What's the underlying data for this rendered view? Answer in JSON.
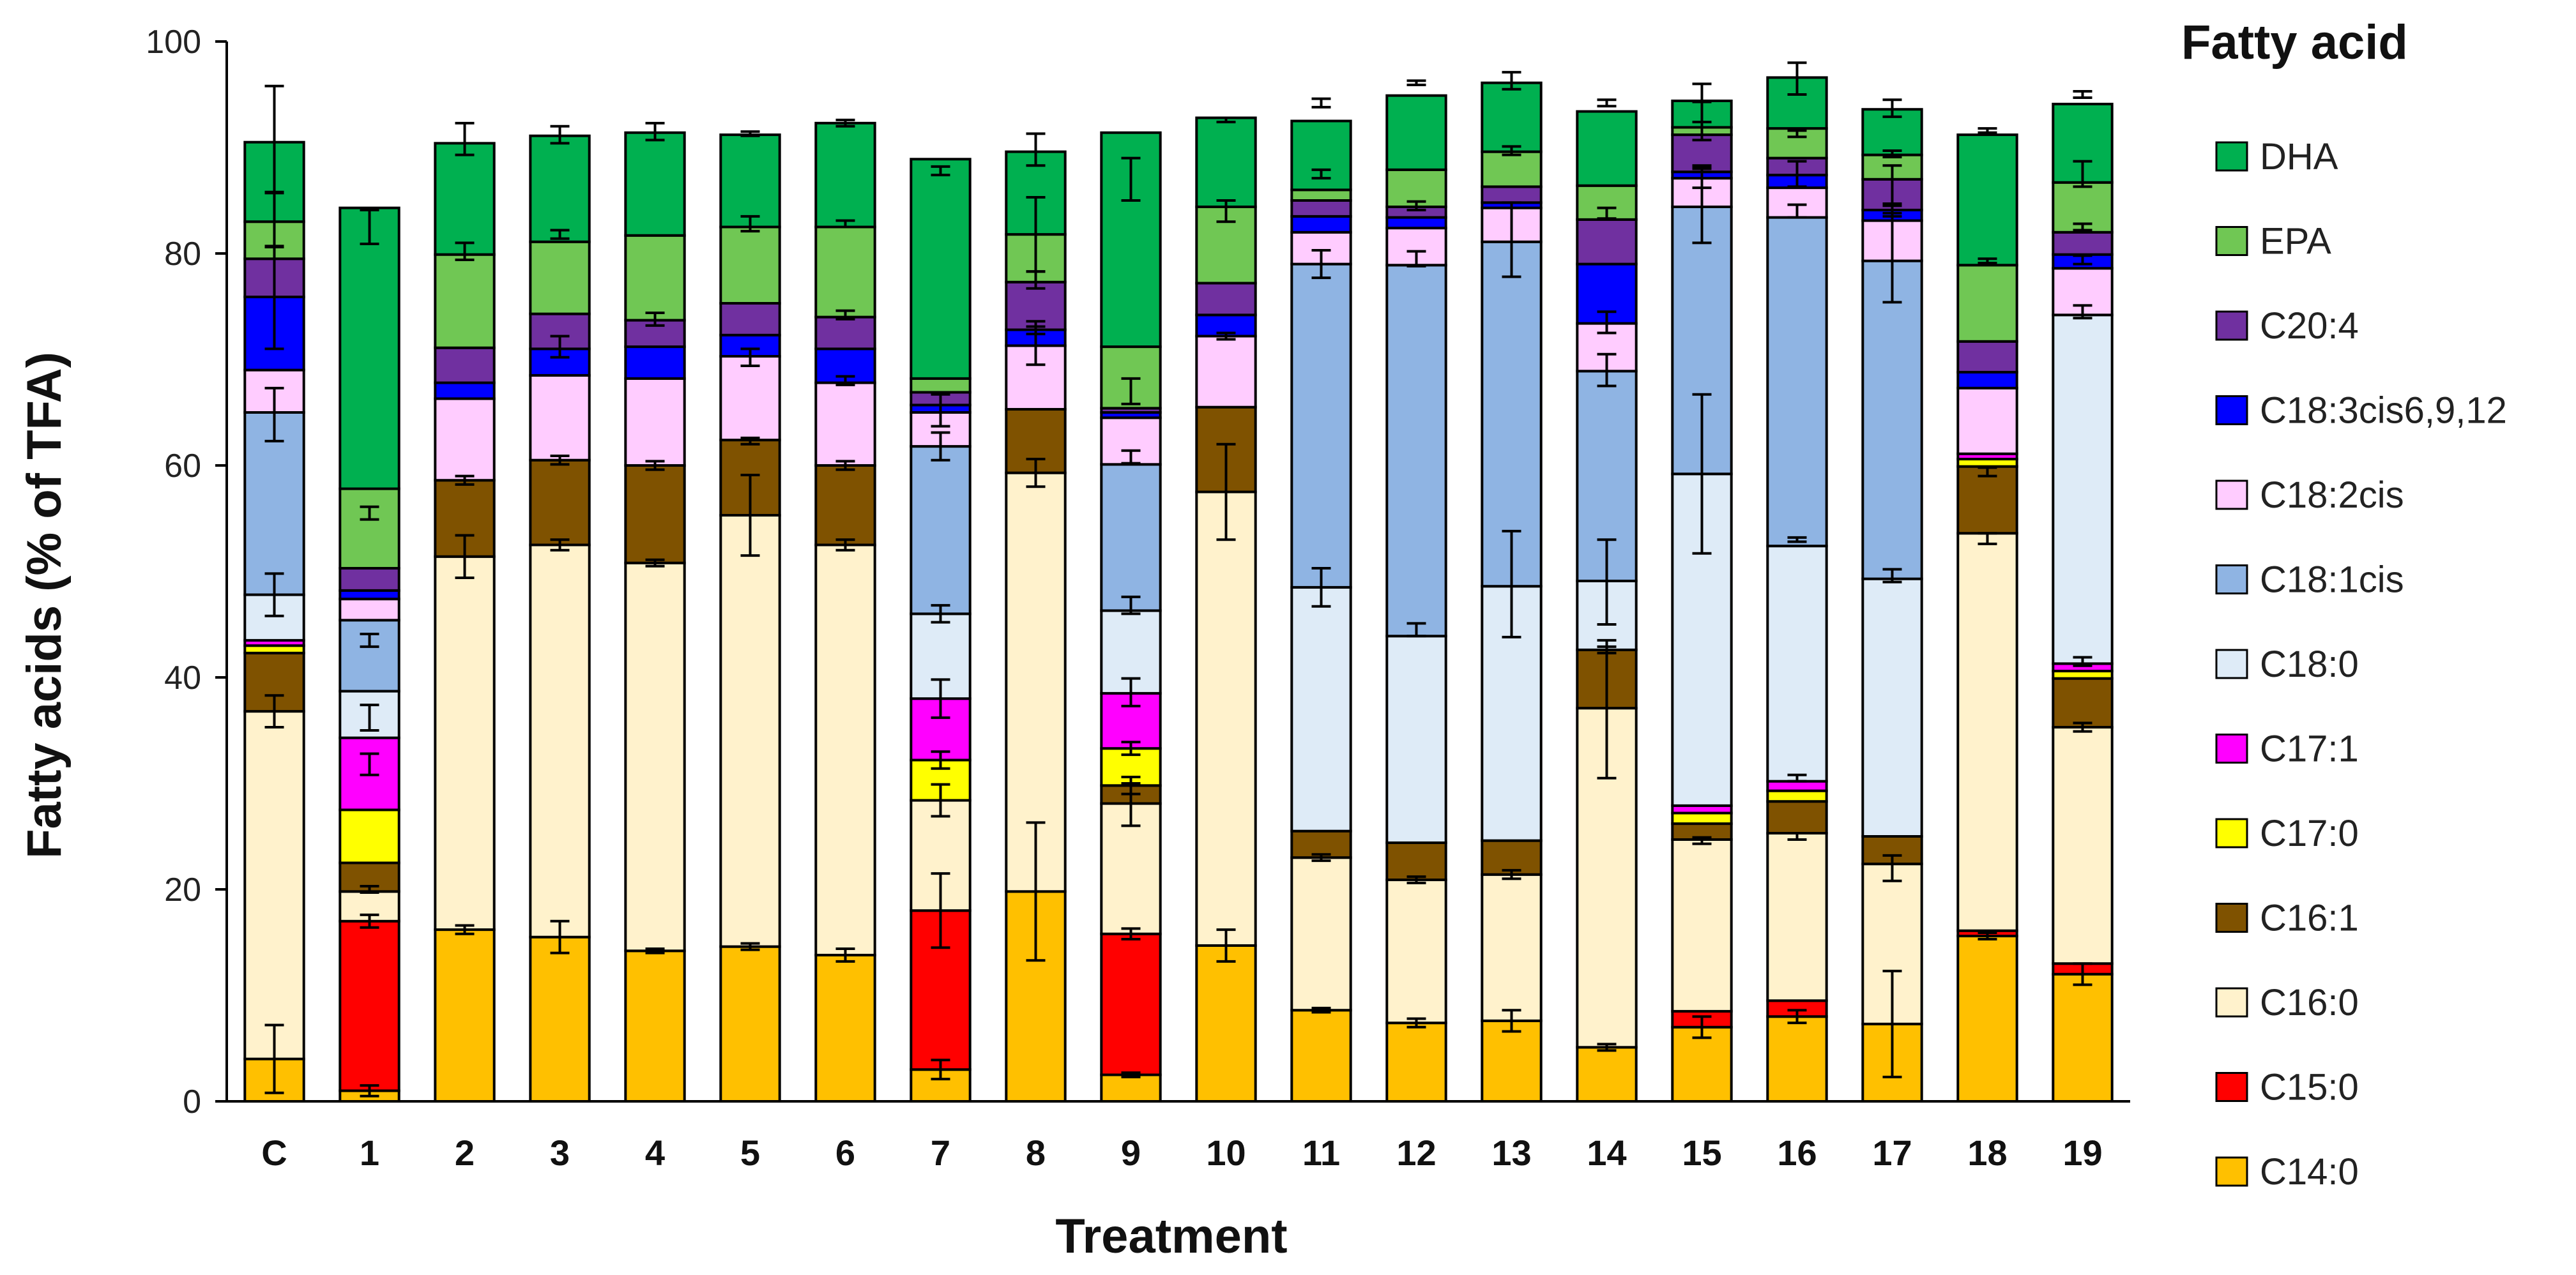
{
  "chart_data": {
    "type": "bar",
    "stacked": true,
    "title": "",
    "xlabel": "Treatment",
    "ylabel": "Fatty acids (% of TFA)",
    "ylim": [
      0,
      100
    ],
    "yticks": [
      0,
      20,
      40,
      60,
      80,
      100
    ],
    "legend_title": "Fatty acid",
    "legend_position": "right",
    "categories": [
      "C",
      "1",
      "2",
      "3",
      "4",
      "5",
      "6",
      "7",
      "8",
      "9",
      "10",
      "11",
      "12",
      "13",
      "14",
      "15",
      "16",
      "17",
      "18",
      "19"
    ],
    "series": [
      {
        "name": "C14:0",
        "color": "#FFC000",
        "values": [
          4,
          1,
          16.2,
          15.5,
          14.2,
          14.6,
          13.8,
          3,
          19.8,
          2.5,
          14.7,
          8.6,
          7.4,
          7.6,
          5.1,
          7,
          8,
          7.3,
          15.6,
          12
        ]
      },
      {
        "name": "C15:0",
        "color": "#FF0000",
        "values": [
          0,
          16,
          0,
          0,
          0,
          0,
          0,
          15,
          0,
          13.3,
          0,
          0,
          0,
          0,
          0,
          1.5,
          1.5,
          0,
          0.5,
          1
        ]
      },
      {
        "name": "C16:0",
        "color": "#FFF2CC",
        "values": [
          32.8,
          2.8,
          35.2,
          37,
          36.6,
          40.7,
          38.7,
          10.4,
          39.5,
          12.3,
          42.8,
          14.4,
          13.5,
          13.8,
          32,
          16.2,
          15.8,
          15.1,
          37.5,
          22.3
        ]
      },
      {
        "name": "C16:1",
        "color": "#7F5200",
        "values": [
          5.5,
          2.7,
          7.2,
          8,
          9.2,
          7.1,
          7.5,
          0,
          6,
          1.7,
          8,
          2.5,
          3.5,
          3.2,
          5.5,
          1.5,
          3,
          2.6,
          6.3,
          4.6
        ]
      },
      {
        "name": "C17:0",
        "color": "#FFFF00",
        "values": [
          0.7,
          5,
          0,
          0,
          0,
          0,
          0,
          3.8,
          0,
          3.5,
          0,
          0,
          0,
          0,
          0,
          1,
          1,
          0,
          0.7,
          0.7
        ]
      },
      {
        "name": "C17:1",
        "color": "#FF00FF",
        "values": [
          0.5,
          6.8,
          0,
          0,
          0,
          0,
          0,
          5.8,
          0,
          5.2,
          0,
          0,
          0,
          0,
          0,
          0.7,
          0.9,
          0,
          0.5,
          0.7
        ]
      },
      {
        "name": "C18:0",
        "color": "#DEEBF7",
        "values": [
          4.3,
          4.4,
          0,
          0,
          0,
          0,
          0,
          8,
          0,
          7.8,
          0,
          23,
          19.5,
          24,
          6.5,
          31.3,
          22.2,
          24.3,
          0,
          32.9
        ]
      },
      {
        "name": "C18:1cis",
        "color": "#8FB4E3",
        "values": [
          17.2,
          6.7,
          0,
          0,
          0,
          0,
          0,
          15.8,
          0,
          13.8,
          0,
          30.5,
          35,
          32.5,
          19.8,
          25.2,
          31,
          30,
          0,
          0
        ]
      },
      {
        "name": "C18:2cis",
        "color": "#FFCCFF",
        "values": [
          4,
          2,
          7.7,
          8,
          8.2,
          7.9,
          7.8,
          3.2,
          6,
          4.4,
          6.7,
          3,
          3.5,
          3.2,
          4.5,
          2.7,
          2.8,
          3.8,
          6.2,
          4.4
        ]
      },
      {
        "name": "C18:3cis6,9,12",
        "color": "#0000FF",
        "values": [
          6.9,
          0.8,
          1.5,
          2.5,
          3,
          2,
          3.2,
          0.7,
          1.5,
          0.5,
          2,
          1.5,
          1,
          0.5,
          5.6,
          0.6,
          1.2,
          1,
          1.5,
          1.3
        ]
      },
      {
        "name": "C20:4",
        "color": "#7030A0",
        "values": [
          3.6,
          2.1,
          3.3,
          3.3,
          2.5,
          3,
          3,
          1.2,
          4.5,
          0.4,
          3,
          1.5,
          1,
          1.5,
          4.2,
          3.5,
          1.6,
          2.9,
          2.9,
          2.1
        ]
      },
      {
        "name": "EPA",
        "color": "#70C754",
        "values": [
          3.5,
          7.5,
          8.8,
          6.8,
          8,
          7.2,
          8.5,
          1.3,
          4.5,
          5.8,
          7.2,
          1,
          3.5,
          3.3,
          3.2,
          0.7,
          2.8,
          2.3,
          7.2,
          4.7
        ]
      },
      {
        "name": "DHA",
        "color": "#00B050",
        "values": [
          7.5,
          26.5,
          10.5,
          10,
          9.7,
          8.7,
          9.8,
          20.7,
          7.8,
          20.2,
          8.4,
          6.5,
          7,
          6.5,
          7,
          2.5,
          4.8,
          4.3,
          12.3,
          7.4
        ]
      }
    ],
    "error_bars": [
      [
        [
          4,
          3.2
        ],
        [
          36.8,
          1.5
        ],
        [
          47.8,
          2
        ],
        [
          64.8,
          2.5
        ],
        [
          75.8,
          4.8
        ],
        [
          83.2,
          2.5
        ],
        [
          90.8,
          5
        ]
      ],
      [
        [
          1,
          0.5
        ],
        [
          17,
          0.6
        ],
        [
          20,
          0.3
        ],
        [
          31.8,
          1
        ],
        [
          36.2,
          1.2
        ],
        [
          43.5,
          0.6
        ],
        [
          55.5,
          0.6
        ],
        [
          82.5,
          1.6
        ]
      ],
      [
        [
          16.2,
          0.4
        ],
        [
          51.4,
          2
        ],
        [
          58.6,
          0.4
        ],
        [
          80.2,
          0.8
        ],
        [
          90.8,
          1.5
        ]
      ],
      [
        [
          15.5,
          1.5
        ],
        [
          52.5,
          0.5
        ],
        [
          60.5,
          0.4
        ],
        [
          81.8,
          0.4
        ],
        [
          71.2,
          1
        ],
        [
          91.2,
          0.8
        ]
      ],
      [
        [
          14.2,
          0.2
        ],
        [
          50.8,
          0.3
        ],
        [
          60,
          0.4
        ],
        [
          73.8,
          0.6
        ],
        [
          91.5,
          0.8
        ]
      ],
      [
        [
          14.6,
          0.3
        ],
        [
          55.3,
          3.8
        ],
        [
          62.3,
          0.3
        ],
        [
          70.2,
          0.8
        ],
        [
          82.8,
          0.7
        ],
        [
          91.3,
          0.2
        ]
      ],
      [
        [
          13.8,
          0.6
        ],
        [
          52.5,
          0.5
        ],
        [
          60,
          0.4
        ],
        [
          68,
          0.4
        ],
        [
          74.2,
          0.4
        ],
        [
          82.8,
          0.3
        ],
        [
          92.3,
          0.3
        ]
      ],
      [
        [
          3,
          0.9
        ],
        [
          18,
          3.5
        ],
        [
          28.4,
          1.5
        ],
        [
          32.2,
          0.8
        ],
        [
          38,
          1.8
        ],
        [
          46,
          0.8
        ],
        [
          61.8,
          1.3
        ],
        [
          65.2,
          1.5
        ],
        [
          87.8,
          0.4
        ]
      ],
      [
        [
          19.8,
          6.5
        ],
        [
          59.3,
          1.3
        ],
        [
          71.3,
          1.8
        ],
        [
          73,
          0.6
        ],
        [
          77.5,
          0.8
        ],
        [
          81.8,
          3.5
        ],
        [
          89.8,
          1.5
        ]
      ],
      [
        [
          2.5,
          0.2
        ],
        [
          15.8,
          0.5
        ],
        [
          28,
          2
        ],
        [
          29.8,
          0.8
        ],
        [
          33.3,
          0.6
        ],
        [
          38.6,
          1.3
        ],
        [
          46.8,
          0.8
        ],
        [
          60.8,
          0.6
        ],
        [
          67,
          1.2
        ],
        [
          87,
          2
        ]
      ],
      [
        [
          14.7,
          1.5
        ],
        [
          57.5,
          4.5
        ],
        [
          72.2,
          0.3
        ],
        [
          84,
          1
        ],
        [
          92.6,
          0.2
        ]
      ],
      [
        [
          8.6,
          0.2
        ],
        [
          23,
          0.3
        ],
        [
          48.5,
          1.8
        ],
        [
          79,
          1.3
        ],
        [
          87.5,
          0.4
        ],
        [
          94.2,
          0.4
        ]
      ],
      [
        [
          7.4,
          0.4
        ],
        [
          20.9,
          0.3
        ],
        [
          44.5,
          0.6
        ],
        [
          79.5,
          0.7
        ],
        [
          84.5,
          0.4
        ],
        [
          96.1,
          0.2
        ]
      ],
      [
        [
          7.6,
          1
        ],
        [
          21.4,
          0.4
        ],
        [
          48.8,
          5
        ],
        [
          81.3,
          3.5
        ],
        [
          89.7,
          0.4
        ],
        [
          96.3,
          0.8
        ]
      ],
      [
        [
          5.1,
          0.3
        ],
        [
          37,
          6.5
        ],
        [
          42.6,
          0.3
        ],
        [
          49,
          4
        ],
        [
          69,
          1.5
        ],
        [
          73.5,
          1
        ],
        [
          83.8,
          0.5
        ],
        [
          94.2,
          0.3
        ]
      ],
      [
        [
          7,
          1
        ],
        [
          24.6,
          0.3
        ],
        [
          59.2,
          7.5
        ],
        [
          84.5,
          3.5
        ],
        [
          87.2,
          1
        ],
        [
          88,
          0.3
        ],
        [
          92.5,
          1.8
        ],
        [
          94.2,
          1.8
        ]
      ],
      [
        [
          8,
          0.6
        ],
        [
          25,
          0.3
        ],
        [
          30.5,
          0.3
        ],
        [
          53,
          0.2
        ],
        [
          84,
          0.6
        ],
        [
          87.5,
          1.2
        ],
        [
          91.3,
          0.3
        ],
        [
          96.5,
          1.5
        ]
      ],
      [
        [
          7.3,
          5
        ],
        [
          22,
          1.2
        ],
        [
          49.6,
          0.6
        ],
        [
          79.6,
          4.2
        ],
        [
          84,
          0.5
        ],
        [
          86.5,
          1.8
        ],
        [
          89.4,
          0.3
        ],
        [
          93.7,
          0.8
        ]
      ],
      [
        [
          15.6,
          0.3
        ],
        [
          53.1,
          0.5
        ],
        [
          59.4,
          0.4
        ],
        [
          79.3,
          0.2
        ],
        [
          91.6,
          0.2
        ]
      ],
      [
        [
          12,
          1
        ],
        [
          35.3,
          0.4
        ],
        [
          41.5,
          0.4
        ],
        [
          74.5,
          0.6
        ],
        [
          79.4,
          0.4
        ],
        [
          82.5,
          0.3
        ],
        [
          87.5,
          1.2
        ],
        [
          95,
          0.3
        ]
      ]
    ]
  }
}
